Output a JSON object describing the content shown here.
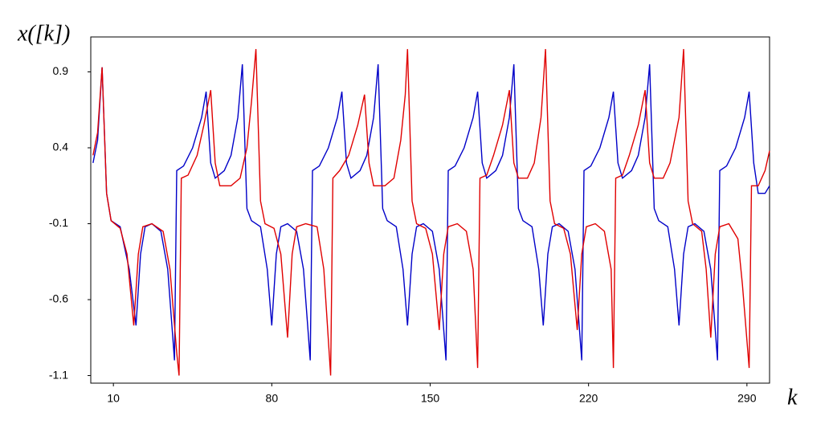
{
  "chart_data": {
    "type": "line",
    "y_label": "x([k])",
    "x_label": "k",
    "xlim": [
      0,
      300
    ],
    "ylim": [
      -1.15,
      1.13
    ],
    "xticks": [
      10,
      80,
      150,
      220,
      290
    ],
    "yticks": [
      0.9,
      0.4,
      -0.1,
      -0.6,
      -1.1
    ],
    "grid": false,
    "series": [
      {
        "color": "#0000c8",
        "x": [
          1,
          3,
          5,
          7,
          9,
          13,
          17,
          20,
          22,
          24,
          27,
          31,
          34,
          37,
          38,
          41,
          45,
          49,
          51,
          53,
          55,
          59,
          62,
          65,
          67,
          69,
          71,
          75,
          78,
          80,
          82,
          84,
          87,
          91,
          94,
          97,
          98,
          101,
          105,
          109,
          111,
          113,
          115,
          119,
          122,
          125,
          127,
          129,
          131,
          135,
          138,
          140,
          142,
          144,
          147,
          151,
          154,
          157,
          158,
          161,
          165,
          169,
          171,
          173,
          175,
          179,
          182,
          185,
          187,
          189,
          191,
          195,
          198,
          200,
          202,
          204,
          207,
          211,
          214,
          217,
          218,
          221,
          225,
          229,
          231,
          233,
          235,
          239,
          242,
          245,
          247,
          249,
          251,
          255,
          258,
          260,
          262,
          264,
          267,
          271,
          274,
          277,
          278,
          281,
          285,
          289,
          291,
          293,
          295,
          298,
          300
        ],
        "values": [
          0.3,
          0.45,
          0.93,
          0.1,
          -0.08,
          -0.12,
          -0.4,
          -0.77,
          -0.3,
          -0.12,
          -0.1,
          -0.15,
          -0.4,
          -1.0,
          0.25,
          0.28,
          0.4,
          0.6,
          0.77,
          0.3,
          0.2,
          0.25,
          0.35,
          0.6,
          0.95,
          0,
          -0.08,
          -0.12,
          -0.4,
          -0.77,
          -0.3,
          -0.12,
          -0.1,
          -0.15,
          -0.4,
          -1.0,
          0.25,
          0.28,
          0.4,
          0.6,
          0.77,
          0.3,
          0.2,
          0.25,
          0.35,
          0.6,
          0.95,
          0,
          -0.08,
          -0.12,
          -0.4,
          -0.77,
          -0.3,
          -0.12,
          -0.1,
          -0.15,
          -0.4,
          -1.0,
          0.25,
          0.28,
          0.4,
          0.6,
          0.77,
          0.3,
          0.2,
          0.25,
          0.35,
          0.6,
          0.95,
          0,
          -0.08,
          -0.12,
          -0.4,
          -0.77,
          -0.3,
          -0.12,
          -0.1,
          -0.15,
          -0.4,
          -1.0,
          0.25,
          0.28,
          0.4,
          0.6,
          0.77,
          0.3,
          0.2,
          0.25,
          0.35,
          0.6,
          0.95,
          0,
          -0.08,
          -0.12,
          -0.4,
          -0.77,
          -0.3,
          -0.12,
          -0.1,
          -0.15,
          -0.4,
          -1.0,
          0.25,
          0.28,
          0.4,
          0.6,
          0.77,
          0.3,
          0.1,
          0.1,
          0.15
        ]
      },
      {
        "color": "#e00000",
        "x": [
          1,
          3,
          5,
          7,
          9,
          13,
          16,
          19,
          21,
          23,
          27,
          32,
          35,
          38,
          39,
          40,
          43,
          47,
          50,
          53,
          55,
          57,
          62,
          66,
          69,
          71,
          73,
          75,
          77,
          81,
          84,
          87,
          89,
          91,
          95,
          100,
          103,
          106,
          107,
          110,
          114,
          118,
          121,
          123,
          125,
          130,
          134,
          137,
          139,
          140,
          142,
          144,
          148,
          151,
          154,
          156,
          158,
          162,
          166,
          169,
          171,
          172,
          175,
          178,
          182,
          185,
          187,
          189,
          193,
          196,
          199,
          201,
          203,
          205,
          209,
          212,
          215,
          217,
          219,
          223,
          227,
          230,
          231,
          232,
          235,
          238,
          242,
          245,
          247,
          249,
          253,
          256,
          260,
          262,
          264,
          266,
          270,
          272,
          274,
          276,
          278,
          282,
          286,
          288,
          291,
          292,
          295,
          298,
          300
        ],
        "values": [
          0.35,
          0.5,
          0.93,
          0.1,
          -0.08,
          -0.13,
          -0.3,
          -0.77,
          -0.3,
          -0.12,
          -0.1,
          -0.15,
          -0.4,
          -0.95,
          -1.1,
          0.2,
          0.22,
          0.35,
          0.55,
          0.78,
          0.3,
          0.15,
          0.15,
          0.2,
          0.4,
          0.7,
          1.05,
          0.05,
          -0.1,
          -0.13,
          -0.3,
          -0.85,
          -0.3,
          -0.12,
          -0.1,
          -0.12,
          -0.4,
          -1.1,
          0.2,
          0.25,
          0.35,
          0.55,
          0.75,
          0.3,
          0.15,
          0.15,
          0.2,
          0.45,
          0.75,
          1.05,
          0.05,
          -0.1,
          -0.13,
          -0.3,
          -0.8,
          -0.3,
          -0.12,
          -0.1,
          -0.15,
          -0.4,
          -1.05,
          0.2,
          0.22,
          0.35,
          0.55,
          0.78,
          0.3,
          0.2,
          0.2,
          0.3,
          0.6,
          1.05,
          0.05,
          -0.1,
          -0.13,
          -0.3,
          -0.8,
          -0.3,
          -0.12,
          -0.1,
          -0.15,
          -0.4,
          -1.05,
          0.2,
          0.22,
          0.35,
          0.55,
          0.78,
          0.3,
          0.2,
          0.2,
          0.3,
          0.6,
          1.05,
          0.05,
          -0.1,
          -0.15,
          -0.4,
          -0.85,
          -0.3,
          -0.12,
          -0.1,
          -0.2,
          -0.5,
          -1.05,
          0.15,
          0.15,
          0.25,
          0.38
        ]
      }
    ]
  }
}
